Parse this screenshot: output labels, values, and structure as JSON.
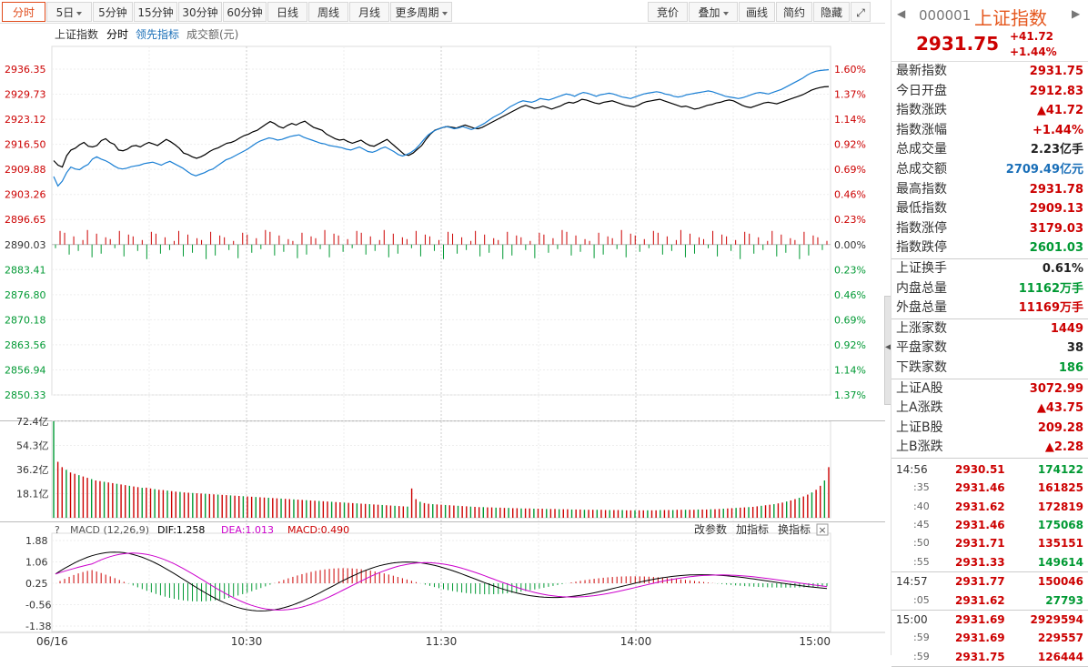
{
  "toolbar": {
    "left": [
      {
        "label": "分时",
        "active": true
      },
      {
        "label": "5日",
        "dropdown": true
      },
      {
        "label": "5分钟"
      },
      {
        "label": "15分钟"
      },
      {
        "label": "30分钟"
      },
      {
        "label": "60分钟"
      },
      {
        "label": "日线"
      },
      {
        "label": "周线"
      },
      {
        "label": "月线"
      },
      {
        "label": "更多周期",
        "dropdown": true
      }
    ],
    "right": [
      {
        "label": "竞价"
      },
      {
        "label": "叠加",
        "dropdown": true
      },
      {
        "label": "画线"
      },
      {
        "label": "简约"
      },
      {
        "label": "隐藏"
      }
    ]
  },
  "legend": {
    "name": "上证指数",
    "mode": "分时",
    "lead": "领先指标",
    "volume": "成交额(元)"
  },
  "macd_header": {
    "title": "MACD (12,26,9)",
    "dif": "DIF:1.258",
    "dea": "DEA:1.013",
    "macd": "MACD:0.490",
    "actions": [
      "改参数",
      "加指标",
      "换指标"
    ]
  },
  "colors": {
    "up": "#cc0000",
    "down": "#009933",
    "price_line": "#000000",
    "lead_line": "#1a7fd4",
    "dea_line": "#cc00cc",
    "dif_line": "#000000",
    "accent": "#e5571d"
  },
  "chart_data": {
    "type": "line",
    "price_axis_left": [
      "2936.35",
      "2929.73",
      "2923.12",
      "2916.50",
      "2909.88",
      "2903.26",
      "2896.65",
      "2890.03",
      "2883.41",
      "2876.80",
      "2870.18",
      "2863.56",
      "2856.94",
      "2850.33"
    ],
    "pct_axis_right": [
      "1.60%",
      "1.37%",
      "1.14%",
      "0.92%",
      "0.69%",
      "0.46%",
      "0.23%",
      "0.00%",
      "0.23%",
      "0.46%",
      "0.69%",
      "0.92%",
      "1.14%",
      "1.37%"
    ],
    "pct_axis_colors": [
      "up",
      "up",
      "up",
      "up",
      "up",
      "up",
      "up",
      "flat",
      "down",
      "down",
      "down",
      "down",
      "down",
      "down"
    ],
    "ylim": [
      2850.33,
      2936.35
    ],
    "prev_close": 2890.03,
    "series": [
      {
        "name": "上证指数",
        "values": [
          2912.2,
          2911.0,
          2910.5,
          2913.5,
          2915.0,
          2915.5,
          2916.4,
          2917.0,
          2916.0,
          2915.8,
          2916.2,
          2917.5,
          2918.0,
          2917.0,
          2916.5,
          2915.0,
          2914.8,
          2915.2,
          2916.0,
          2916.2,
          2915.8,
          2916.5,
          2917.0,
          2916.6,
          2916.2,
          2917.0,
          2917.8,
          2917.2,
          2916.4,
          2915.5,
          2914.2,
          2913.8,
          2913.2,
          2912.8,
          2913.2,
          2913.8,
          2914.6,
          2915.2,
          2915.6,
          2916.2,
          2916.8,
          2917.0,
          2917.5,
          2918.2,
          2918.8,
          2919.2,
          2919.8,
          2920.2,
          2921.0,
          2921.8,
          2922.5,
          2922.0,
          2921.2,
          2920.8,
          2921.5,
          2922.0,
          2921.6,
          2922.2,
          2922.6,
          2921.8,
          2921.0,
          2920.6,
          2920.2,
          2919.2,
          2918.6,
          2918.0,
          2917.6,
          2917.8,
          2917.2,
          2916.8,
          2917.2,
          2917.6,
          2916.8,
          2916.2,
          2916.0,
          2916.6,
          2917.2,
          2917.8,
          2916.8,
          2915.8,
          2914.8,
          2913.8,
          2913.6,
          2914.2,
          2915.2,
          2916.2,
          2917.8,
          2919.2,
          2920.2,
          2920.6,
          2921.0,
          2921.2,
          2921.0,
          2920.8,
          2921.2,
          2921.6,
          2921.2,
          2920.8,
          2920.6,
          2921.0,
          2921.6,
          2922.2,
          2922.8,
          2923.4,
          2924.0,
          2924.6,
          2925.2,
          2925.8,
          2926.4,
          2926.8,
          2926.4,
          2926.0,
          2926.2,
          2926.6,
          2926.2,
          2925.8,
          2926.2,
          2926.6,
          2927.2,
          2927.6,
          2927.4,
          2927.8,
          2928.4,
          2928.2,
          2927.8,
          2927.4,
          2927.2,
          2927.6,
          2927.8,
          2928.0,
          2927.6,
          2927.2,
          2926.8,
          2926.6,
          2926.4,
          2926.8,
          2927.4,
          2927.8,
          2928.0,
          2928.2,
          2928.4,
          2928.0,
          2927.6,
          2927.2,
          2926.8,
          2926.4,
          2926.6,
          2926.2,
          2925.8,
          2926.0,
          2926.4,
          2926.8,
          2927.0,
          2927.4,
          2927.6,
          2928.0,
          2928.2,
          2928.0,
          2927.4,
          2926.8,
          2926.4,
          2926.2,
          2926.6,
          2927.0,
          2927.4,
          2927.6,
          2927.4,
          2927.2,
          2927.6,
          2928.0,
          2928.4,
          2928.8,
          2929.2,
          2929.6,
          2930.2,
          2930.8,
          2931.2,
          2931.5,
          2931.7,
          2931.75
        ]
      },
      {
        "name": "领先指标",
        "values": [
          2908.0,
          2905.5,
          2906.8,
          2909.0,
          2910.5,
          2910.0,
          2909.8,
          2910.6,
          2911.2,
          2912.6,
          2913.2,
          2912.6,
          2912.2,
          2911.6,
          2910.8,
          2910.2,
          2910.0,
          2910.2,
          2910.6,
          2910.8,
          2911.0,
          2911.4,
          2911.6,
          2911.8,
          2911.4,
          2911.0,
          2911.6,
          2912.0,
          2911.4,
          2910.8,
          2910.2,
          2909.4,
          2908.6,
          2908.2,
          2908.6,
          2909.0,
          2909.6,
          2910.0,
          2910.8,
          2911.6,
          2912.4,
          2912.8,
          2913.4,
          2914.0,
          2914.6,
          2915.2,
          2916.0,
          2916.8,
          2917.4,
          2917.8,
          2918.2,
          2918.0,
          2917.6,
          2917.8,
          2918.2,
          2918.6,
          2918.8,
          2919.0,
          2918.4,
          2918.0,
          2917.6,
          2917.2,
          2916.8,
          2916.6,
          2916.2,
          2916.0,
          2915.8,
          2915.6,
          2915.2,
          2915.0,
          2915.4,
          2915.8,
          2915.2,
          2914.6,
          2914.4,
          2914.8,
          2915.4,
          2915.8,
          2915.2,
          2914.6,
          2913.8,
          2913.4,
          2913.8,
          2914.4,
          2915.2,
          2916.4,
          2917.8,
          2919.0,
          2919.8,
          2920.4,
          2920.8,
          2921.2,
          2921.0,
          2920.6,
          2920.8,
          2921.2,
          2920.8,
          2920.4,
          2920.8,
          2921.4,
          2922.0,
          2922.8,
          2923.6,
          2924.2,
          2924.8,
          2925.6,
          2926.4,
          2927.0,
          2927.6,
          2928.0,
          2927.8,
          2927.6,
          2928.0,
          2928.6,
          2928.4,
          2928.2,
          2928.6,
          2929.0,
          2929.4,
          2929.8,
          2929.6,
          2929.2,
          2929.8,
          2930.2,
          2930.0,
          2929.6,
          2929.2,
          2929.6,
          2929.8,
          2930.0,
          2929.8,
          2929.4,
          2929.0,
          2928.8,
          2928.6,
          2929.0,
          2929.4,
          2929.8,
          2930.0,
          2930.2,
          2930.4,
          2930.2,
          2929.8,
          2929.6,
          2929.2,
          2929.0,
          2929.2,
          2929.6,
          2929.8,
          2930.0,
          2930.2,
          2930.4,
          2930.6,
          2930.4,
          2930.0,
          2929.6,
          2929.2,
          2929.0,
          2928.8,
          2928.6,
          2928.8,
          2929.2,
          2929.6,
          2930.0,
          2930.2,
          2930.0,
          2929.8,
          2930.2,
          2930.6,
          2931.0,
          2931.6,
          2932.2,
          2932.8,
          2933.4,
          2934.0,
          2934.8,
          2935.4,
          2935.8,
          2936.0,
          2936.1,
          2936.2
        ]
      }
    ],
    "volume_axis": [
      "72.4亿",
      "54.3亿",
      "36.2亿",
      "18.1亿"
    ],
    "volume_max": 72.4,
    "volume": [
      72.4,
      42,
      38,
      36,
      34,
      33,
      32,
      31,
      30,
      29,
      28,
      27.5,
      27,
      26.5,
      26,
      25.5,
      25,
      24.5,
      24,
      23.5,
      23,
      22.5,
      22.6,
      22,
      21.5,
      21,
      20.8,
      20.4,
      20,
      19.6,
      19.4,
      19,
      18.8,
      18.6,
      18.4,
      18.2,
      18,
      17.8,
      17.6,
      17.4,
      17.2,
      17,
      16.8,
      16.6,
      16.4,
      16.2,
      16,
      15.8,
      15.6,
      15.4,
      15.2,
      15,
      14.8,
      14.6,
      14.4,
      14.2,
      14,
      13.8,
      13.6,
      13.4,
      13.2,
      13,
      12.8,
      12.6,
      12.4,
      12.2,
      12,
      11.8,
      11.6,
      11.4,
      11.2,
      11,
      10.8,
      10.6,
      10.4,
      10.2,
      10,
      9.8,
      9.6,
      9.4,
      9.2,
      9,
      8.8,
      8.6,
      8.4,
      22,
      14,
      12,
      11,
      10.5,
      10.2,
      10,
      9.8,
      9.6,
      9.4,
      9.2,
      9,
      8.8,
      8.6,
      8.4,
      8.2,
      8,
      8,
      7.8,
      7.8,
      7.6,
      7.6,
      7.4,
      7.4,
      7.2,
      7.2,
      7,
      7,
      7,
      6.8,
      6.8,
      6.8,
      6.6,
      6.6,
      6.6,
      6.4,
      6.4,
      6.4,
      6.2,
      6.2,
      6.2,
      6,
      6,
      6,
      6,
      6,
      5.8,
      5.8,
      5.8,
      5.8,
      5.8,
      5.6,
      5.6,
      5.6,
      5.6,
      5.6,
      5.6,
      5.6,
      5.6,
      5.8,
      5.8,
      5.8,
      5.8,
      6,
      6,
      6,
      6,
      6,
      6.2,
      6.2,
      6.2,
      6.4,
      6.4,
      6.6,
      6.8,
      7,
      7.2,
      7.4,
      7.6,
      7.8,
      8,
      8.2,
      8.6,
      9,
      9.4,
      9.8,
      10.2,
      10.8,
      11.4,
      12.2,
      13,
      14,
      15,
      16,
      17.4,
      19,
      21,
      24,
      28,
      38
    ],
    "macd_axis": [
      "1.88",
      "1.06",
      "0.25",
      "-0.56",
      "-1.38"
    ],
    "macd_ylim": [
      -1.38,
      1.88
    ],
    "time_axis": [
      "06/16",
      "10:30",
      "11:30",
      "14:00",
      "15:00"
    ]
  },
  "quote": {
    "code": "000001",
    "name": "上证指数",
    "price": "2931.75",
    "change": "+41.72",
    "pct": "+1.44%",
    "groups": [
      [
        {
          "label": "最新指数",
          "value": "2931.75",
          "color": "red"
        },
        {
          "label": "今日开盘",
          "value": "2912.83",
          "color": "red"
        },
        {
          "label": "指数涨跌",
          "value": "▲41.72",
          "color": "red"
        },
        {
          "label": "指数涨幅",
          "value": "+1.44%",
          "color": "red"
        },
        {
          "label": "总成交量",
          "value": "2.23亿手",
          "color": "black"
        },
        {
          "label": "总成交额",
          "value": "2709.49亿元",
          "color": "blue"
        },
        {
          "label": "最高指数",
          "value": "2931.78",
          "color": "red"
        },
        {
          "label": "最低指数",
          "value": "2909.13",
          "color": "red"
        },
        {
          "label": "指数涨停",
          "value": "3179.03",
          "color": "red"
        },
        {
          "label": "指数跌停",
          "value": "2601.03",
          "color": "green"
        }
      ],
      [
        {
          "label": "上证换手",
          "value": "0.61%",
          "color": "black"
        },
        {
          "label": "内盘总量",
          "value": "11162万手",
          "color": "green"
        },
        {
          "label": "外盘总量",
          "value": "11169万手",
          "color": "red"
        }
      ],
      [
        {
          "label": "上涨家数",
          "value": "1449",
          "color": "red"
        },
        {
          "label": "平盘家数",
          "value": "38",
          "color": "black"
        },
        {
          "label": "下跌家数",
          "value": "186",
          "color": "green"
        }
      ],
      [
        {
          "label": "上证A股",
          "value": "3072.99",
          "color": "red"
        },
        {
          "label": "上A涨跌",
          "value": "▲43.75",
          "color": "red"
        },
        {
          "label": "上证B股",
          "value": "209.28",
          "color": "red"
        },
        {
          "label": "上B涨跌",
          "value": "▲2.28",
          "color": "red"
        }
      ]
    ],
    "ticks": [
      [
        {
          "time": "14:56",
          "price": "2930.51",
          "vol": "174122",
          "vcolor": "green"
        },
        {
          "time": ":35",
          "price": "2931.46",
          "vol": "161825",
          "vcolor": "red",
          "sub": true
        },
        {
          "time": ":40",
          "price": "2931.62",
          "vol": "172819",
          "vcolor": "red",
          "sub": true
        },
        {
          "time": ":45",
          "price": "2931.46",
          "vol": "175068",
          "vcolor": "green",
          "sub": true
        },
        {
          "time": ":50",
          "price": "2931.71",
          "vol": "135151",
          "vcolor": "red",
          "sub": true
        },
        {
          "time": ":55",
          "price": "2931.33",
          "vol": "149614",
          "vcolor": "green",
          "sub": true
        }
      ],
      [
        {
          "time": "14:57",
          "price": "2931.77",
          "vol": "150046",
          "vcolor": "red"
        },
        {
          "time": ":05",
          "price": "2931.62",
          "vol": "27793",
          "vcolor": "green",
          "sub": true
        }
      ],
      [
        {
          "time": "15:00",
          "price": "2931.69",
          "vol": "2929594",
          "vcolor": "red"
        },
        {
          "time": ":59",
          "price": "2931.69",
          "vol": "229557",
          "vcolor": "red",
          "sub": true
        },
        {
          "time": ":59",
          "price": "2931.75",
          "vol": "126444",
          "vcolor": "red",
          "sub": true
        }
      ]
    ]
  }
}
